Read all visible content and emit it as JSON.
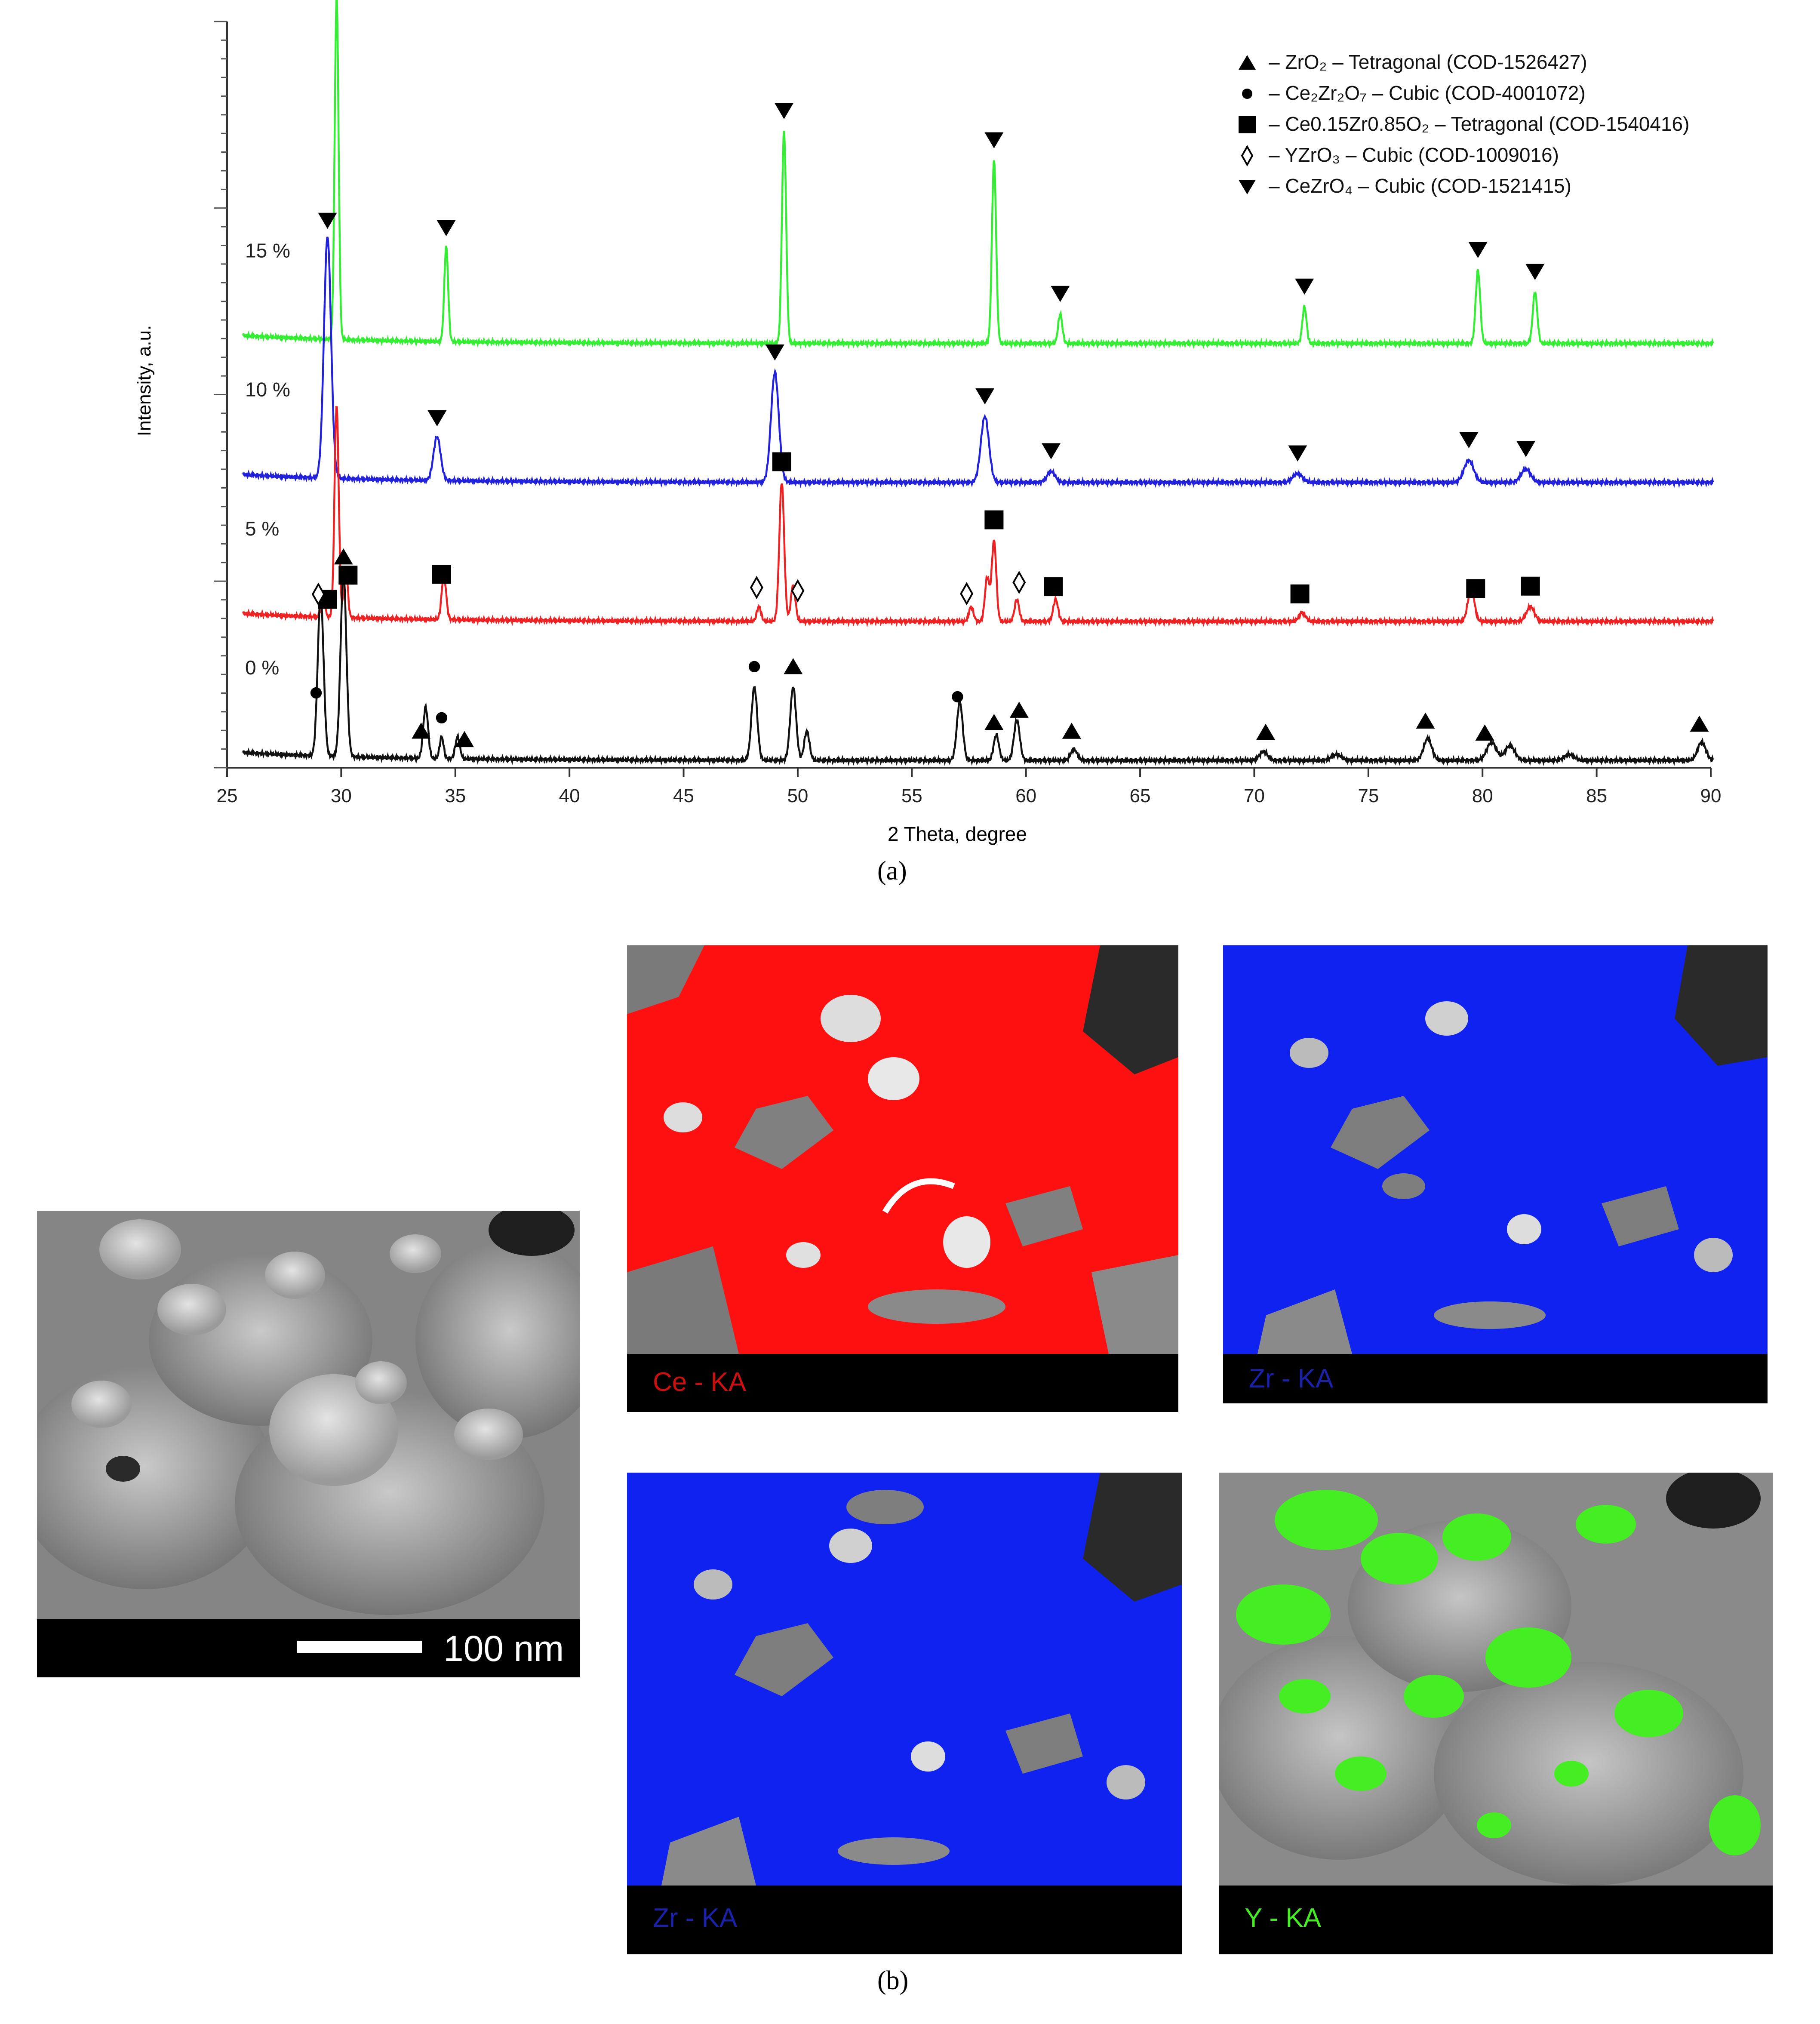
{
  "chart_data": {
    "type": "line",
    "xlabel": "2 Theta, degree",
    "ylabel": "Intensity, a.u.",
    "xlim": [
      25,
      90
    ],
    "xticks": [
      25,
      30,
      35,
      40,
      45,
      50,
      55,
      60,
      65,
      70,
      75,
      80,
      85,
      90
    ],
    "grid": false,
    "legend_position": "top-right",
    "legend": [
      {
        "symbol": "triangle-up",
        "text": "– ZrO₂ – Tetragonal (COD-1526427)"
      },
      {
        "symbol": "circle",
        "text": "– Ce₂Zr₂O₇ – Cubic (COD-4001072)"
      },
      {
        "symbol": "square",
        "text": "– Ce0.15Zr0.85O₂ – Tetragonal (COD-1540416)"
      },
      {
        "symbol": "diamond-open",
        "text": "– YZrO₃ – Cubic (COD-1009016)"
      },
      {
        "symbol": "triangle-down",
        "text": "– CeZrO₄ – Cubic (COD-1521415)"
      }
    ],
    "series": [
      {
        "name": "15 %",
        "color": "#33ee33",
        "baseline": 5.8,
        "peaks": [
          {
            "x": 29.8,
            "height": 4.7,
            "width": 0.12
          },
          {
            "x": 34.6,
            "height": 1.3,
            "width": 0.12
          },
          {
            "x": 49.4,
            "height": 2.9,
            "width": 0.13
          },
          {
            "x": 58.6,
            "height": 2.5,
            "width": 0.13
          },
          {
            "x": 61.5,
            "height": 0.4,
            "width": 0.13
          },
          {
            "x": 72.2,
            "height": 0.5,
            "width": 0.13
          },
          {
            "x": 79.8,
            "height": 1.0,
            "width": 0.14
          },
          {
            "x": 82.3,
            "height": 0.7,
            "width": 0.14
          }
        ],
        "markers": [
          {
            "x": 29.8,
            "symbol": "triangle-down"
          },
          {
            "x": 34.6,
            "symbol": "triangle-down"
          },
          {
            "x": 49.4,
            "symbol": "triangle-down"
          },
          {
            "x": 58.6,
            "symbol": "triangle-down"
          },
          {
            "x": 61.5,
            "symbol": "triangle-down"
          },
          {
            "x": 72.2,
            "symbol": "triangle-down"
          },
          {
            "x": 79.8,
            "symbol": "triangle-down"
          },
          {
            "x": 82.3,
            "symbol": "triangle-down"
          }
        ]
      },
      {
        "name": "10 %",
        "color": "#2222dd",
        "baseline": 3.9,
        "peaks": [
          {
            "x": 29.4,
            "height": 3.3,
            "width": 0.22
          },
          {
            "x": 34.2,
            "height": 0.6,
            "width": 0.22
          },
          {
            "x": 49.0,
            "height": 1.5,
            "width": 0.24
          },
          {
            "x": 58.2,
            "height": 0.9,
            "width": 0.25
          },
          {
            "x": 61.1,
            "height": 0.15,
            "width": 0.25
          },
          {
            "x": 71.9,
            "height": 0.12,
            "width": 0.3
          },
          {
            "x": 79.4,
            "height": 0.3,
            "width": 0.3
          },
          {
            "x": 81.9,
            "height": 0.18,
            "width": 0.3
          }
        ],
        "markers": [
          {
            "x": 29.4,
            "symbol": "triangle-down"
          },
          {
            "x": 34.2,
            "symbol": "triangle-down"
          },
          {
            "x": 49.0,
            "symbol": "triangle-down"
          },
          {
            "x": 58.2,
            "symbol": "triangle-down"
          },
          {
            "x": 61.1,
            "symbol": "triangle-down"
          },
          {
            "x": 71.9,
            "symbol": "triangle-down"
          },
          {
            "x": 79.4,
            "symbol": "triangle-down"
          },
          {
            "x": 81.9,
            "symbol": "triangle-down"
          }
        ]
      },
      {
        "name": "5 %",
        "color": "#ee2222",
        "baseline": 2.0,
        "peaks": [
          {
            "x": 29.2,
            "height": 0.3,
            "width": 0.12
          },
          {
            "x": 29.8,
            "height": 2.9,
            "width": 0.13
          },
          {
            "x": 30.2,
            "height": 0.7,
            "width": 0.12
          },
          {
            "x": 34.5,
            "height": 0.6,
            "width": 0.14
          },
          {
            "x": 48.3,
            "height": 0.2,
            "width": 0.13
          },
          {
            "x": 49.3,
            "height": 1.9,
            "width": 0.15
          },
          {
            "x": 49.8,
            "height": 0.5,
            "width": 0.14
          },
          {
            "x": 57.6,
            "height": 0.2,
            "width": 0.14
          },
          {
            "x": 58.3,
            "height": 0.6,
            "width": 0.14
          },
          {
            "x": 58.6,
            "height": 1.1,
            "width": 0.14
          },
          {
            "x": 59.6,
            "height": 0.3,
            "width": 0.14
          },
          {
            "x": 61.3,
            "height": 0.3,
            "width": 0.15
          },
          {
            "x": 72.1,
            "height": 0.12,
            "width": 0.2
          },
          {
            "x": 79.5,
            "height": 0.45,
            "width": 0.2
          },
          {
            "x": 82.1,
            "height": 0.2,
            "width": 0.25
          }
        ],
        "markers": [
          {
            "x": 29.4,
            "symbol": "square"
          },
          {
            "x": 30.3,
            "symbol": "square"
          },
          {
            "x": 34.4,
            "symbol": "square"
          },
          {
            "x": 49.3,
            "symbol": "square"
          },
          {
            "x": 58.6,
            "symbol": "square"
          },
          {
            "x": 61.2,
            "symbol": "square"
          },
          {
            "x": 72.0,
            "symbol": "square"
          },
          {
            "x": 79.7,
            "symbol": "square"
          },
          {
            "x": 82.1,
            "symbol": "square"
          },
          {
            "x": 29.0,
            "symbol": "diamond-open"
          },
          {
            "x": 48.2,
            "symbol": "diamond-open"
          },
          {
            "x": 50.0,
            "symbol": "diamond-open"
          },
          {
            "x": 57.4,
            "symbol": "diamond-open"
          },
          {
            "x": 59.7,
            "symbol": "diamond-open"
          }
        ]
      },
      {
        "name": "0 %",
        "color": "#111111",
        "baseline": 0.1,
        "peaks": [
          {
            "x": 29.1,
            "height": 2.2,
            "width": 0.18
          },
          {
            "x": 30.1,
            "height": 2.5,
            "width": 0.18
          },
          {
            "x": 33.7,
            "height": 0.7,
            "width": 0.15
          },
          {
            "x": 34.4,
            "height": 0.3,
            "width": 0.12
          },
          {
            "x": 35.1,
            "height": 0.3,
            "width": 0.14
          },
          {
            "x": 48.1,
            "height": 1.0,
            "width": 0.18
          },
          {
            "x": 49.8,
            "height": 1.0,
            "width": 0.18
          },
          {
            "x": 50.4,
            "height": 0.4,
            "width": 0.16
          },
          {
            "x": 57.1,
            "height": 0.8,
            "width": 0.18
          },
          {
            "x": 58.7,
            "height": 0.35,
            "width": 0.16
          },
          {
            "x": 59.6,
            "height": 0.55,
            "width": 0.18
          },
          {
            "x": 62.1,
            "height": 0.15,
            "width": 0.2
          },
          {
            "x": 70.4,
            "height": 0.12,
            "width": 0.25
          },
          {
            "x": 73.6,
            "height": 0.08,
            "width": 0.3
          },
          {
            "x": 77.6,
            "height": 0.3,
            "width": 0.25
          },
          {
            "x": 80.4,
            "height": 0.25,
            "width": 0.3
          },
          {
            "x": 81.2,
            "height": 0.2,
            "width": 0.3
          },
          {
            "x": 83.8,
            "height": 0.08,
            "width": 0.3
          },
          {
            "x": 89.6,
            "height": 0.25,
            "width": 0.25
          }
        ],
        "markers": [
          {
            "x": 28.9,
            "symbol": "circle"
          },
          {
            "x": 34.4,
            "symbol": "circle"
          },
          {
            "x": 48.1,
            "symbol": "circle"
          },
          {
            "x": 57.0,
            "symbol": "circle"
          },
          {
            "x": 30.1,
            "symbol": "triangle-up"
          },
          {
            "x": 33.5,
            "symbol": "triangle-up"
          },
          {
            "x": 35.4,
            "symbol": "triangle-up"
          },
          {
            "x": 49.8,
            "symbol": "triangle-up"
          },
          {
            "x": 58.6,
            "symbol": "triangle-up"
          },
          {
            "x": 59.7,
            "symbol": "triangle-up"
          },
          {
            "x": 62.0,
            "symbol": "triangle-up"
          },
          {
            "x": 70.5,
            "symbol": "triangle-up"
          },
          {
            "x": 77.5,
            "symbol": "triangle-up"
          },
          {
            "x": 80.1,
            "symbol": "triangle-up"
          },
          {
            "x": 89.5,
            "symbol": "triangle-up"
          }
        ]
      }
    ]
  },
  "panel_a_label": "(a)",
  "panel_b_label": "(b)",
  "sem": {
    "scale_text": "100 nm"
  },
  "maps": [
    {
      "label": "Ce - KA",
      "color": "#ff1010",
      "label_color": "#cc1010"
    },
    {
      "label": "Zr - KA",
      "color": "#1022f0",
      "label_color": "#1a22aa"
    },
    {
      "label": "Zr - KA",
      "color": "#1022f0",
      "label_color": "#1a22aa"
    },
    {
      "label": "Y - KA",
      "color": "#44ee22",
      "label_color": "#44ee22"
    }
  ]
}
